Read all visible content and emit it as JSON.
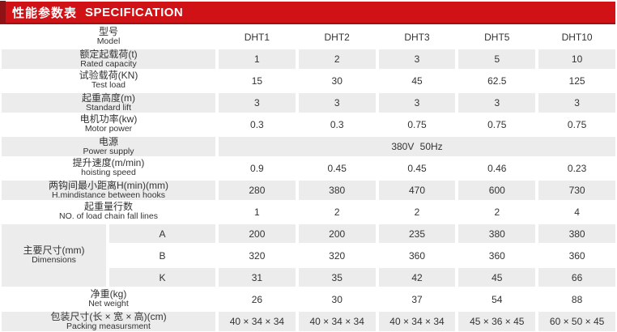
{
  "header": {
    "title_cn": "性能参数表",
    "title_en": "SPECIFICATION"
  },
  "colors": {
    "header_red": "#d01116",
    "header_dark_red": "#8e1216",
    "header_border_red": "#a50d10",
    "row_shade": "#ececec",
    "text": "#333333"
  },
  "table": {
    "rows": {
      "model": {
        "cn": "型号",
        "en": "Model",
        "v": [
          "DHT1",
          "DHT2",
          "DHT3",
          "DHT5",
          "DHT10"
        ]
      },
      "rated": {
        "cn": "额定起载荷(t)",
        "en": "Rated capacity",
        "v": [
          "1",
          "2",
          "3",
          "5",
          "10"
        ]
      },
      "test": {
        "cn": "试验载荷(KN)",
        "en": "Test load",
        "v": [
          "15",
          "30",
          "45",
          "62.5",
          "125"
        ]
      },
      "lift": {
        "cn": "起重高度(m)",
        "en": "Standard lift",
        "v": [
          "3",
          "3",
          "3",
          "3",
          "3"
        ]
      },
      "motor": {
        "cn": "电机功率(kw)",
        "en": "Motor power",
        "v": [
          "0.3",
          "0.3",
          "0.75",
          "0.75",
          "0.75"
        ]
      },
      "power": {
        "cn": "电源",
        "en": "Power supply",
        "merged": "380V 50Hz"
      },
      "speed": {
        "cn": "提升速度(m/min)",
        "en": "hoisting speed",
        "v": [
          "0.9",
          "0.45",
          "0.45",
          "0.46",
          "0.23"
        ]
      },
      "hmin": {
        "cn": "两钩间最小距离H(min)(mm)",
        "en": "H.mindistance between hooks",
        "v": [
          "280",
          "380",
          "470",
          "600",
          "730"
        ]
      },
      "falls": {
        "cn": "起重量行数",
        "en": "NO. of load chain fall lines",
        "v": [
          "1",
          "2",
          "2",
          "2",
          "4"
        ]
      },
      "net": {
        "cn": "净重(kg)",
        "en": "Net weight",
        "v": [
          "26",
          "30",
          "37",
          "54",
          "88"
        ]
      },
      "packing": {
        "cn": "包装尺寸(长 × 宽 × 高)(cm)",
        "en": "Packing measursment",
        "v": [
          "40 × 34 × 34",
          "40 × 34 × 34",
          "40 × 34 × 34",
          "45 × 36 × 45",
          "60 × 50 × 45"
        ]
      }
    },
    "dims": {
      "cn": "主要尺寸(mm)",
      "en": "Dimensions",
      "sub": [
        {
          "k": "A",
          "v": [
            "200",
            "200",
            "235",
            "380",
            "380"
          ]
        },
        {
          "k": "B",
          "v": [
            "320",
            "320",
            "360",
            "360",
            "360"
          ]
        },
        {
          "k": "K",
          "v": [
            "31",
            "35",
            "42",
            "45",
            "66"
          ]
        }
      ]
    }
  }
}
